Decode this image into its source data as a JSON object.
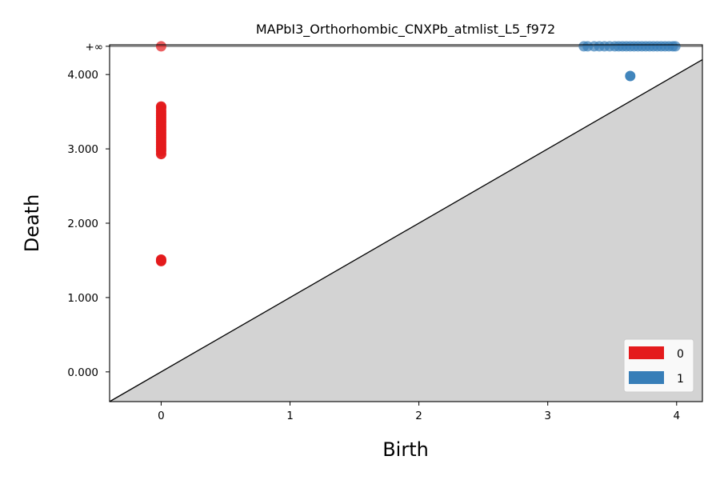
{
  "chart_data": {
    "type": "scatter",
    "title": "MAPbI3_Orthorhombic_CNXPb_atmlist_L5_f972",
    "xlabel": "Birth",
    "ylabel": "Death",
    "xlim": [
      -0.4,
      4.2
    ],
    "ylim": [
      -0.4,
      4.4
    ],
    "infinity_label": "+∞",
    "infinity_value": 4.38,
    "x_ticks": [
      {
        "value": 0,
        "label": "0"
      },
      {
        "value": 1,
        "label": "1"
      },
      {
        "value": 2,
        "label": "2"
      },
      {
        "value": 3,
        "label": "3"
      },
      {
        "value": 4,
        "label": "4"
      }
    ],
    "y_ticks": [
      {
        "value": 0,
        "label": "0.000"
      },
      {
        "value": 1,
        "label": "1.000"
      },
      {
        "value": 2,
        "label": "2.000"
      },
      {
        "value": 3,
        "label": "3.000"
      },
      {
        "value": 4,
        "label": "4.000"
      }
    ],
    "legend_position": "bottom-right",
    "series": [
      {
        "name": "0",
        "color": "#e41a1c",
        "points": [
          {
            "x": 0,
            "y": 1.49
          },
          {
            "x": 0,
            "y": 1.5
          },
          {
            "x": 0,
            "y": 1.51
          },
          {
            "x": 0,
            "y": 2.93
          },
          {
            "x": 0,
            "y": 2.97
          },
          {
            "x": 0,
            "y": 3.0
          },
          {
            "x": 0,
            "y": 3.03
          },
          {
            "x": 0,
            "y": 3.06
          },
          {
            "x": 0,
            "y": 3.09
          },
          {
            "x": 0,
            "y": 3.12
          },
          {
            "x": 0,
            "y": 3.15
          },
          {
            "x": 0,
            "y": 3.18
          },
          {
            "x": 0,
            "y": 3.21
          },
          {
            "x": 0,
            "y": 3.24
          },
          {
            "x": 0,
            "y": 3.27
          },
          {
            "x": 0,
            "y": 3.3
          },
          {
            "x": 0,
            "y": 3.33
          },
          {
            "x": 0,
            "y": 3.36
          },
          {
            "x": 0,
            "y": 3.39
          },
          {
            "x": 0,
            "y": 3.42
          },
          {
            "x": 0,
            "y": 3.45
          },
          {
            "x": 0,
            "y": 3.48
          },
          {
            "x": 0,
            "y": 3.51
          },
          {
            "x": 0,
            "y": 3.55
          },
          {
            "x": 0,
            "y": 3.57
          }
        ],
        "infinite_births": [
          0
        ]
      },
      {
        "name": "1",
        "color": "#377eb8",
        "points": [
          {
            "x": 3.64,
            "y": 3.98
          }
        ],
        "infinite_births": [
          3.28,
          3.31,
          3.36,
          3.4,
          3.44,
          3.48,
          3.52,
          3.55,
          3.58,
          3.61,
          3.64,
          3.67,
          3.7,
          3.73,
          3.76,
          3.79,
          3.82,
          3.85,
          3.88,
          3.91,
          3.94,
          3.97,
          3.99
        ]
      }
    ]
  }
}
